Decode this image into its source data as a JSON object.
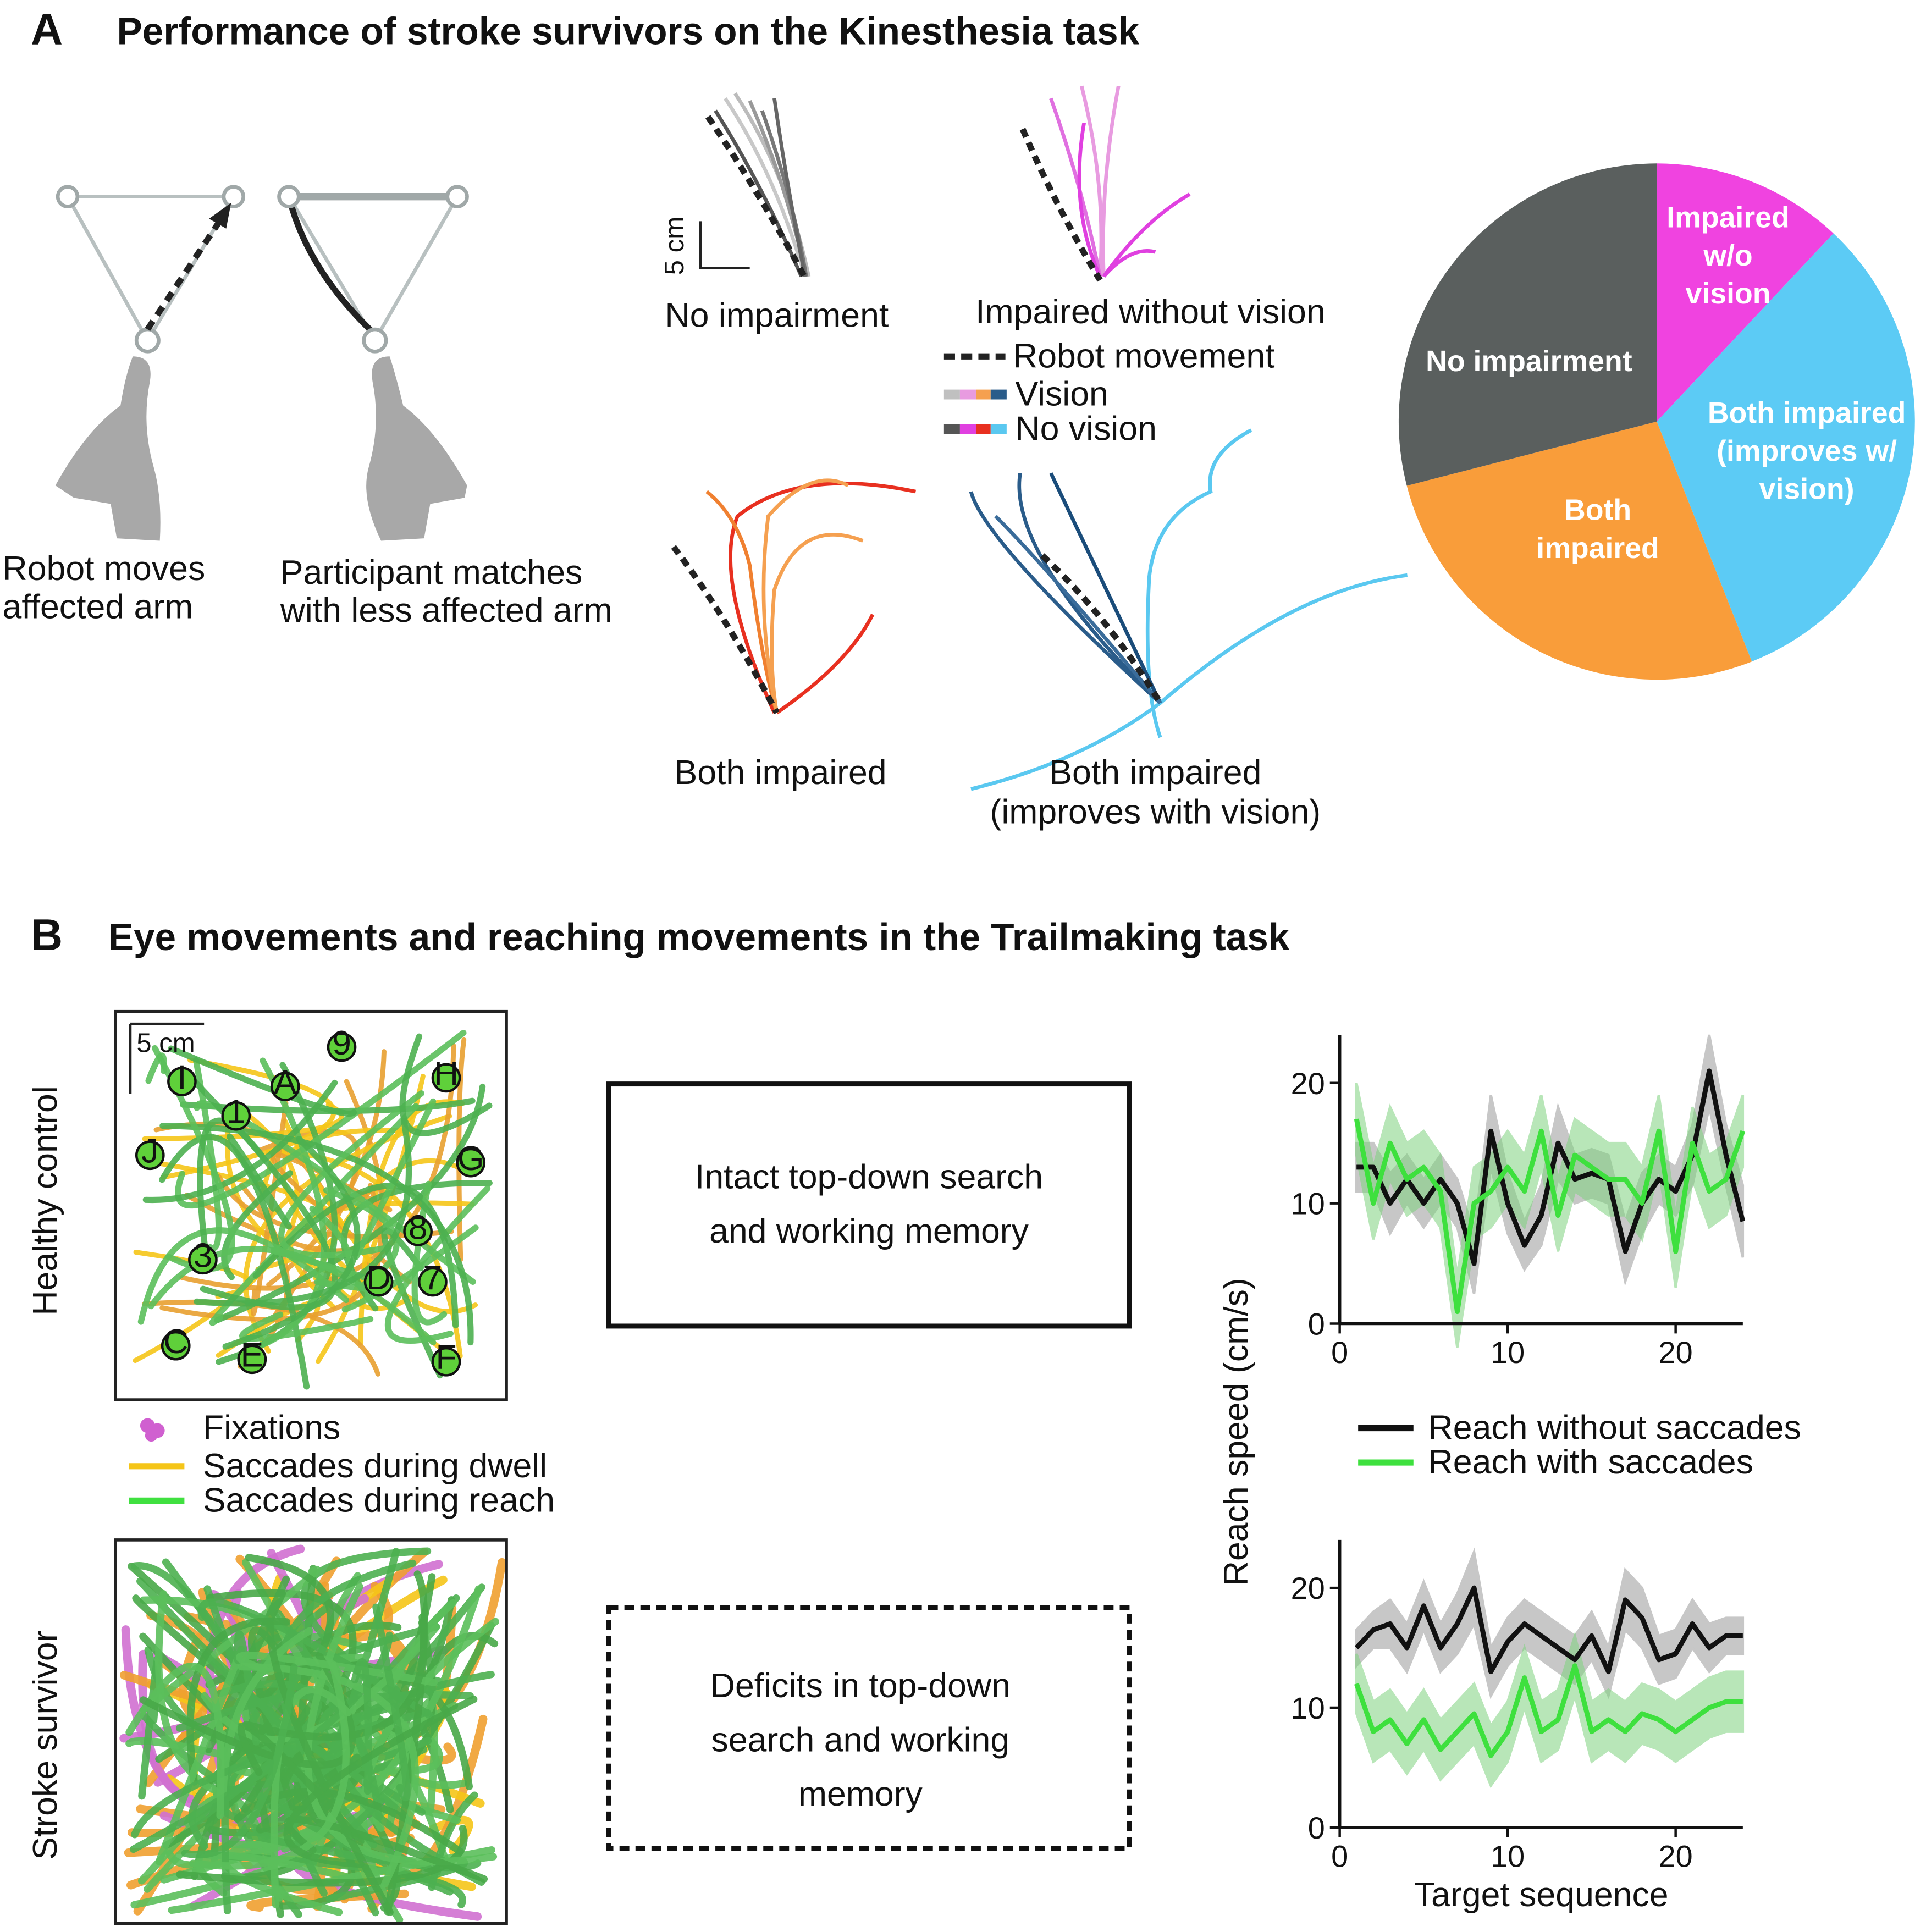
{
  "panel_a": {
    "letter": "A",
    "title": "Performance of stroke survivors on the Kinesthesia task",
    "caption_robot": "Robot moves\naffected arm",
    "caption_participant": "Participant matches\nwith less affected arm",
    "scale": "5 cm",
    "trajectory_labels": [
      "No impairment",
      "Impaired without vision",
      "Both impaired",
      "Both impaired\n(improves with vision)"
    ],
    "legend": [
      "Robot movement",
      "Vision",
      "No vision"
    ]
  },
  "panel_b": {
    "letter": "B",
    "title": "Eye movements and reaching movements in the Trailmaking task",
    "rows": [
      "Healthy control",
      "Stroke survivor"
    ],
    "scale": "5 cm",
    "targets": [
      "9",
      "H",
      "I",
      "A",
      "1",
      "G",
      "J",
      "8",
      "7",
      "D",
      "C",
      "E",
      "F",
      "3"
    ],
    "legend": [
      "Fixations",
      "Saccades during dwell",
      "Saccades during reach"
    ],
    "boxes": [
      "Intact top-down search\nand working memory",
      "Deficits in top-down\nsearch and working\nmemory"
    ]
  },
  "chart_data": [
    {
      "type": "pie",
      "categories": [
        "Impaired\nw/o\nvision",
        "Both impaired\n(improves w/\nvision)",
        "Both\nimpaired",
        "No impairment"
      ],
      "values": [
        12,
        32,
        27,
        29
      ],
      "colors": [
        "#f043e0",
        "#5ccbf5",
        "#f99d3a",
        "#5a5f5e"
      ]
    },
    {
      "type": "line",
      "x": [
        1,
        2,
        3,
        4,
        5,
        6,
        7,
        8,
        9,
        10,
        11,
        12,
        13,
        14,
        15,
        16,
        17,
        18,
        19,
        20,
        21,
        22,
        23,
        24
      ],
      "xlim": [
        0,
        24
      ],
      "ylim": [
        0,
        24
      ],
      "xticks": [
        0,
        10,
        20
      ],
      "yticks": [
        0,
        10,
        20
      ],
      "series": [
        {
          "name": "Reach without saccades",
          "color": "#111111",
          "band_color": "#9a9a9a",
          "values": [
            13,
            13,
            10,
            12,
            10,
            12,
            10,
            5,
            16,
            10,
            6.5,
            9,
            15,
            12,
            12.5,
            12,
            6,
            10,
            12,
            11,
            14,
            21,
            14,
            8.5
          ],
          "errors": [
            2,
            2,
            2.5,
            2,
            2,
            2,
            2,
            2.5,
            3,
            2.5,
            2,
            2.5,
            3,
            2,
            2,
            2,
            2.5,
            2.5,
            2,
            2,
            2.5,
            3,
            2.5,
            3
          ]
        },
        {
          "name": "Reach with saccades",
          "color": "#3ee03e",
          "band_color": "#7fd37f",
          "values": [
            17,
            10,
            15,
            12,
            13,
            11,
            1,
            10,
            11,
            13,
            11,
            16,
            9,
            14,
            13,
            12,
            12,
            10,
            16,
            6,
            15,
            11,
            12,
            16
          ],
          "errors": [
            3,
            3,
            3,
            3,
            3,
            3,
            3,
            3,
            3,
            3,
            3,
            3,
            3,
            3,
            3,
            3,
            3,
            3,
            3,
            3,
            3,
            3,
            3,
            3
          ]
        }
      ]
    },
    {
      "type": "line",
      "x": [
        1,
        2,
        3,
        4,
        5,
        6,
        7,
        8,
        9,
        10,
        11,
        12,
        13,
        14,
        15,
        16,
        17,
        18,
        19,
        20,
        21,
        22,
        23,
        24
      ],
      "xlim": [
        0,
        24
      ],
      "ylim": [
        0,
        24
      ],
      "xticks": [
        0,
        10,
        20
      ],
      "yticks": [
        0,
        10,
        20
      ],
      "xlabel": "Target sequence",
      "ylabel": "Reach speed (cm/s)",
      "series": [
        {
          "color": "#111111",
          "band_color": "#9a9a9a",
          "values": [
            15,
            16.5,
            17,
            15,
            18.5,
            15,
            17,
            20,
            13,
            15.5,
            17,
            16,
            15,
            14,
            16,
            13,
            19,
            17.5,
            14,
            14.5,
            17,
            15,
            16,
            16
          ],
          "errors": [
            1.5,
            1.5,
            2,
            2,
            2,
            2,
            2.5,
            3,
            2,
            2,
            2,
            2,
            2,
            2,
            2,
            2,
            2.5,
            2.5,
            2,
            2,
            2,
            2,
            1.5,
            1.5
          ]
        },
        {
          "color": "#3ee03e",
          "band_color": "#7fd37f",
          "values": [
            12,
            8,
            9,
            7,
            9,
            6.5,
            8,
            9.5,
            6,
            8,
            12.5,
            8,
            9,
            13.5,
            8,
            9,
            8,
            9.5,
            9,
            8,
            9,
            10,
            10.5,
            10.5
          ],
          "errors": [
            2.5,
            2.5,
            2.5,
            2.5,
            2.5,
            2.5,
            2.5,
            2.5,
            2.5,
            2.5,
            2.5,
            2.5,
            2.5,
            2.5,
            2.5,
            2.5,
            2.5,
            2.5,
            2.5,
            2.5,
            2.5,
            2.5,
            2.5,
            2.5
          ]
        }
      ]
    }
  ]
}
